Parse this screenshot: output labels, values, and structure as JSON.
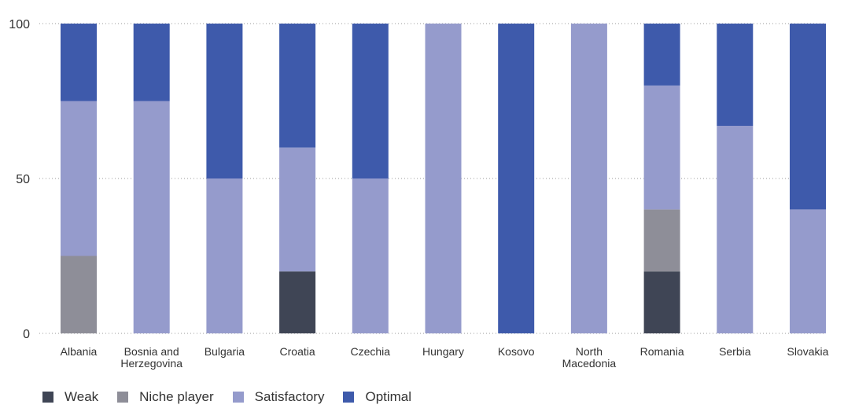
{
  "chart_data": {
    "type": "bar",
    "stacked": true,
    "categories": [
      "Albania",
      "Bosnia and Herzegovina",
      "Bulgaria",
      "Croatia",
      "Czechia",
      "Hungary",
      "Kosovo",
      "North Macedonia",
      "Romania",
      "Serbia",
      "Slovakia"
    ],
    "category_label_lines": [
      [
        "Albania"
      ],
      [
        "Bosnia and",
        "Herzegovina"
      ],
      [
        "Bulgaria"
      ],
      [
        "Croatia"
      ],
      [
        "Czechia"
      ],
      [
        "Hungary"
      ],
      [
        "Kosovo"
      ],
      [
        "North",
        "Macedonia"
      ],
      [
        "Romania"
      ],
      [
        "Serbia"
      ],
      [
        "Slovakia"
      ]
    ],
    "series": [
      {
        "name": "Weak",
        "color": "#3f4555",
        "values": [
          0,
          0,
          0,
          20,
          0,
          0,
          0,
          0,
          20,
          0,
          0
        ]
      },
      {
        "name": "Niche player",
        "color": "#8e8e98",
        "values": [
          25,
          0,
          0,
          0,
          0,
          0,
          0,
          0,
          20,
          0,
          0
        ]
      },
      {
        "name": "Satisfactory",
        "color": "#959bcc",
        "values": [
          50,
          75,
          50,
          40,
          50,
          100,
          0,
          100,
          40,
          67,
          40
        ]
      },
      {
        "name": "Optimal",
        "color": "#3e5aab",
        "values": [
          25,
          25,
          50,
          40,
          50,
          0,
          100,
          0,
          20,
          33,
          60
        ]
      }
    ],
    "y_ticks": [
      0,
      50,
      100
    ],
    "ylim": [
      0,
      100
    ],
    "grid": "dotted horizontal lines at 50 and 100",
    "legend_position": "bottom-left"
  }
}
